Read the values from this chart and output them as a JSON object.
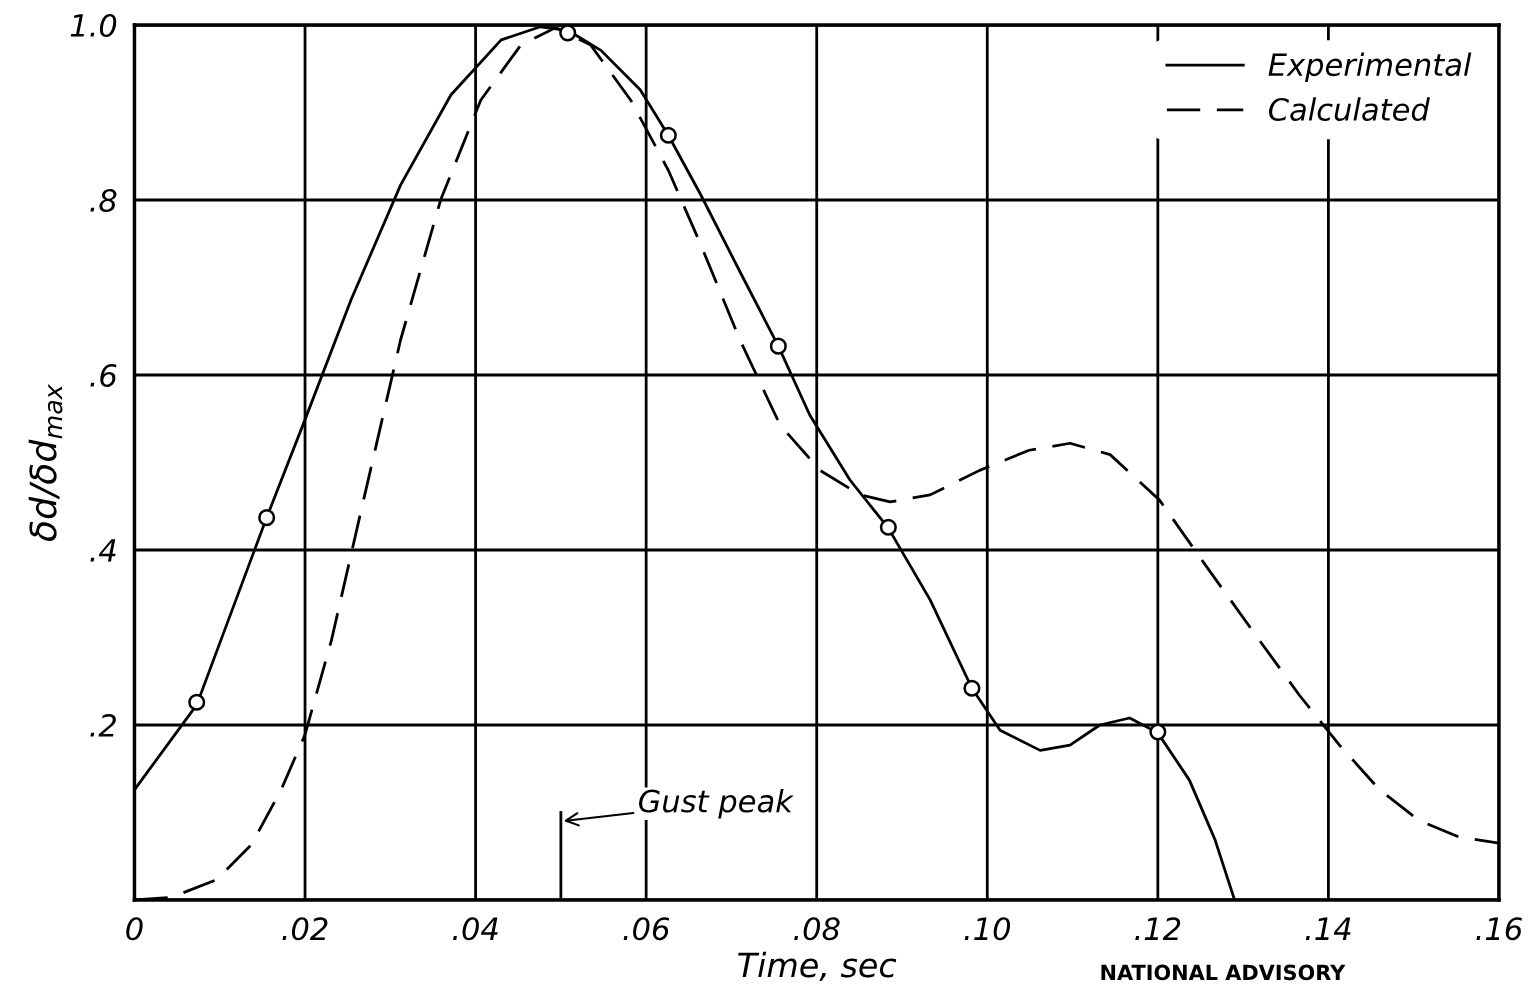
{
  "chart_data": {
    "type": "line",
    "xlabel": "Time, sec",
    "ylabel": "δd/δd$_{max}$",
    "xlim": [
      0,
      0.16
    ],
    "ylim": [
      0,
      1.0
    ],
    "xticks": [
      {
        "value": 0,
        "label": "0"
      },
      {
        "value": 0.02,
        "label": ".02"
      },
      {
        "value": 0.04,
        "label": ".04"
      },
      {
        "value": 0.06,
        "label": ".06"
      },
      {
        "value": 0.08,
        "label": ".08"
      },
      {
        "value": 0.1,
        "label": ".10"
      },
      {
        "value": 0.12,
        "label": ".12"
      },
      {
        "value": 0.14,
        "label": ".14"
      },
      {
        "value": 0.16,
        "label": ".16"
      }
    ],
    "yticks": [
      {
        "value": 0,
        "label": null
      },
      {
        "value": 0.2,
        "label": ".2"
      },
      {
        "value": 0.4,
        "label": ".4"
      },
      {
        "value": 0.6,
        "label": ".6"
      },
      {
        "value": 0.8,
        "label": ".8"
      },
      {
        "value": 1.0,
        "label": "1.0"
      }
    ],
    "grid": true,
    "legend": "top right",
    "series": [
      {
        "name": "Experimental",
        "color": "#000000",
        "line_style": "solid",
        "marker": "none",
        "x": [
          0,
          0.0073,
          0.0155,
          0.02,
          0.0254,
          0.0312,
          0.0371,
          0.043,
          0.0476,
          0.0508,
          0.0547,
          0.0593,
          0.0626,
          0.0664,
          0.071,
          0.0755,
          0.0792,
          0.0839,
          0.0884,
          0.0933,
          0.0982,
          0.1015,
          0.1062,
          0.1097,
          0.1132,
          0.1167,
          0.12,
          0.1237,
          0.1267,
          0.129
        ],
        "values": [
          0.126,
          0.223,
          0.437,
          0.549,
          0.686,
          0.817,
          0.92,
          0.983,
          0.998,
          0.994,
          0.971,
          0.926,
          0.874,
          0.806,
          0.718,
          0.633,
          0.554,
          0.48,
          0.425,
          0.343,
          0.242,
          0.194,
          0.171,
          0.177,
          0.2,
          0.208,
          0.191,
          0.137,
          0.069,
          0.0
        ]
      },
      {
        "color": "#000000",
        "type": "scatter",
        "marker": "circle",
        "x": [
          0.0073,
          0.0155,
          0.0508,
          0.0626,
          0.0755,
          0.0884,
          0.0982,
          0.12
        ],
        "values": [
          0.226,
          0.437,
          0.991,
          0.874,
          0.633,
          0.426,
          0.242,
          0.192
        ]
      },
      {
        "name": "Calculated",
        "color": "#000000",
        "line_style": "dashed",
        "marker": "none",
        "x": [
          0,
          0.0043,
          0.0096,
          0.0137,
          0.0172,
          0.02,
          0.0231,
          0.0266,
          0.0312,
          0.0359,
          0.0406,
          0.0453,
          0.0494,
          0.0535,
          0.0582,
          0.0626,
          0.0664,
          0.071,
          0.0757,
          0.0804,
          0.0851,
          0.0886,
          0.0933,
          0.0991,
          0.1049,
          0.1097,
          0.1144,
          0.1202,
          0.126,
          0.1319,
          0.1366,
          0.1413,
          0.146,
          0.1506,
          0.1553,
          0.16
        ],
        "values": [
          0.0,
          0.003,
          0.023,
          0.063,
          0.126,
          0.189,
          0.297,
          0.446,
          0.64,
          0.8,
          0.914,
          0.977,
          0.997,
          0.977,
          0.914,
          0.834,
          0.749,
          0.64,
          0.543,
          0.491,
          0.463,
          0.455,
          0.463,
          0.491,
          0.514,
          0.522,
          0.509,
          0.457,
          0.377,
          0.297,
          0.234,
          0.177,
          0.126,
          0.091,
          0.072,
          0.065
        ]
      }
    ],
    "ref_lines": [
      {
        "axis": "x",
        "value": 0.05,
        "label": "Gust peak",
        "color": "#000000",
        "line_style": "solid"
      }
    ],
    "annotations": [
      "NATIONAL ADVISORY"
    ]
  }
}
